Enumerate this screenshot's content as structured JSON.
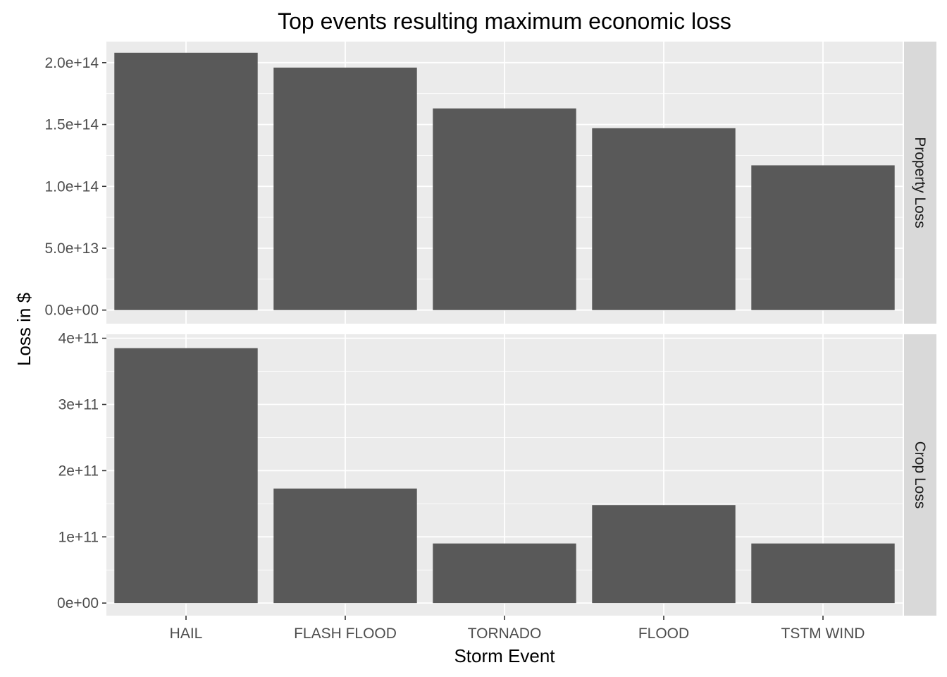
{
  "chart_data": {
    "type": "bar",
    "title": "Top events resulting maximum economic loss",
    "xlabel": "Storm Event",
    "ylabel": "Loss in $",
    "categories": [
      "HAIL",
      "FLASH FLOOD",
      "TORNADO",
      "FLOOD",
      "TSTM WIND"
    ],
    "grid": true,
    "bar_color": "#595959",
    "panel_background": "#ebebeb",
    "strip_background": "#d9d9d9",
    "facets": [
      {
        "label": "Property Loss",
        "values": [
          208000000000000.0,
          196000000000000.0,
          163000000000000.0,
          147000000000000.0,
          117000000000000.0
        ],
        "ylim": [
          -11000000000000.0,
          217000000000000.0
        ],
        "ticks": [
          0,
          50000000000000.0,
          100000000000000.0,
          150000000000000.0,
          200000000000000.0
        ],
        "tick_labels": [
          "0.0e+00",
          "5.0e+13",
          "1.0e+14",
          "1.5e+14",
          "2.0e+14"
        ]
      },
      {
        "label": "Crop Loss",
        "values": [
          385000000000.0,
          173000000000.0,
          90000000000.0,
          148000000000.0,
          90000000000.0
        ],
        "ylim": [
          -19000000000.0,
          406000000000.0
        ],
        "ticks": [
          0,
          100000000000.0,
          200000000000.0,
          300000000000.0,
          400000000000.0
        ],
        "tick_labels": [
          "0e+00",
          "1e+11",
          "2e+11",
          "3e+11",
          "4e+11"
        ]
      }
    ]
  }
}
